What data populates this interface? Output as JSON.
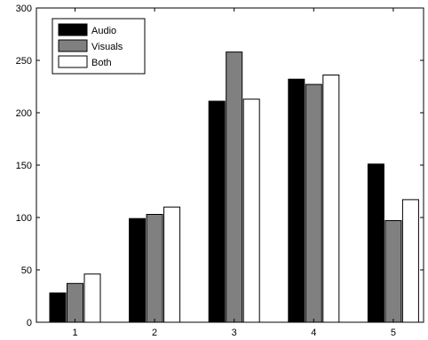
{
  "chart_data": {
    "type": "bar",
    "title": "",
    "xlabel": "",
    "ylabel": "",
    "categories": [
      "1",
      "2",
      "3",
      "4",
      "5"
    ],
    "ylim": [
      0,
      300
    ],
    "yticks": [
      0,
      50,
      100,
      150,
      200,
      250,
      300
    ],
    "grid": false,
    "legend_position": "top-left",
    "series": [
      {
        "name": "Audio",
        "color": "#000000",
        "values": [
          28,
          99,
          211,
          232,
          151
        ]
      },
      {
        "name": "Visuals",
        "color": "#808080",
        "values": [
          37,
          103,
          258,
          227,
          97
        ]
      },
      {
        "name": "Both",
        "color": "#ffffff",
        "values": [
          46,
          110,
          213,
          236,
          117
        ]
      }
    ]
  }
}
